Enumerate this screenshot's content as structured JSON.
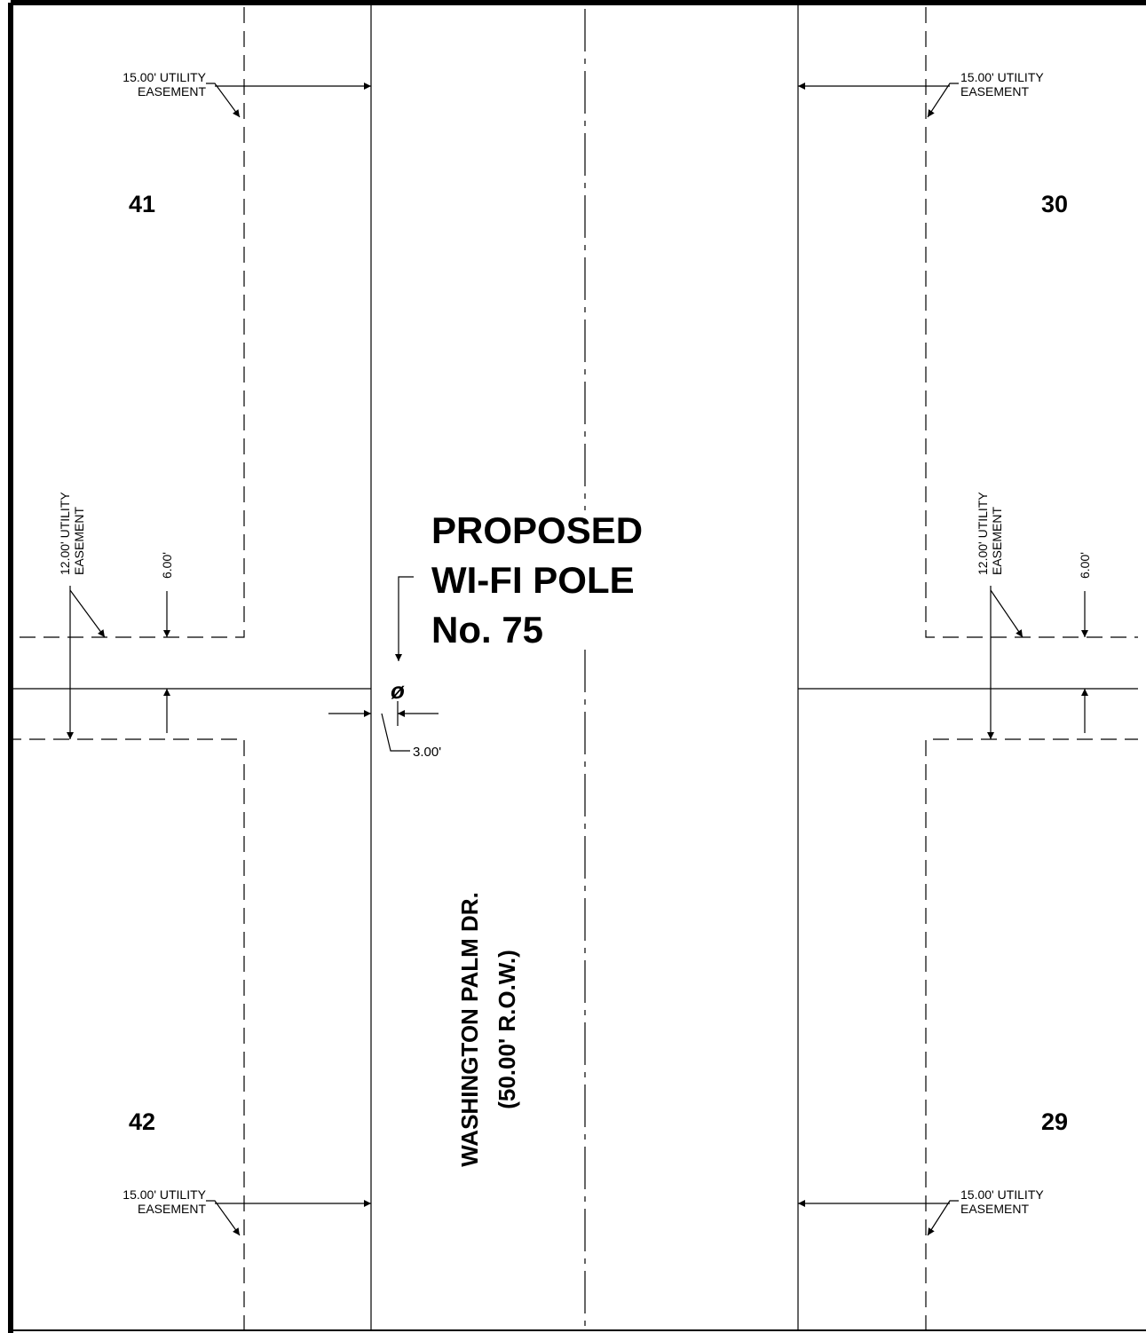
{
  "easements": {
    "top_left": [
      "15.00' UTILITY",
      "EASEMENT"
    ],
    "top_right": [
      "15.00' UTILITY",
      "EASEMENT"
    ],
    "bottom_left": [
      "15.00' UTILITY",
      "EASEMENT"
    ],
    "bottom_right": [
      "15.00' UTILITY",
      "EASEMENT"
    ],
    "side_left": [
      "12.00' UTILITY",
      "EASEMENT"
    ],
    "side_right": [
      "12.00' UTILITY",
      "EASEMENT"
    ]
  },
  "dimensions": {
    "left_offset": "6.00'",
    "right_offset": "6.00'",
    "pole_offset": "3.00'"
  },
  "lots": {
    "top_left": "41",
    "top_right": "30",
    "bottom_left": "42",
    "bottom_right": "29"
  },
  "callout": [
    "PROPOSED",
    "WI-FI POLE",
    "No. 75"
  ],
  "pole_symbol": "ø",
  "street": {
    "name": "WASHINGTON PALM DR.",
    "row": "(50.00' R.O.W.)"
  }
}
